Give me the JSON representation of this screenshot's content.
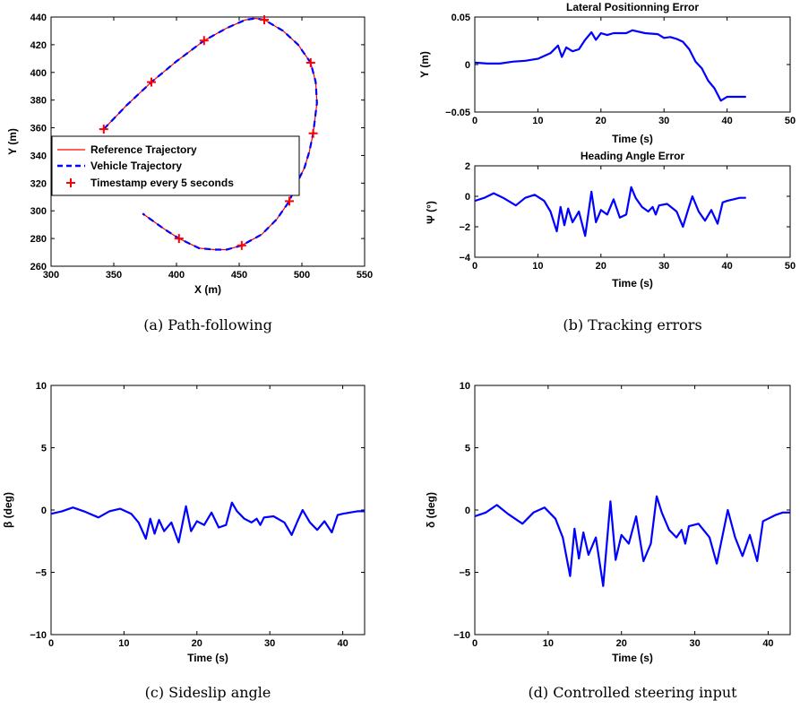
{
  "chart_data": [
    {
      "id": "a",
      "type": "line",
      "caption": "(a)  Path-following",
      "title": "",
      "xlabel": "X (m)",
      "ylabel": "Y (m)",
      "xlim": [
        300,
        550
      ],
      "ylim": [
        260,
        440
      ],
      "xticks": [
        300,
        350,
        400,
        450,
        500,
        550
      ],
      "yticks": [
        260,
        280,
        300,
        320,
        340,
        360,
        380,
        400,
        420,
        440
      ],
      "grid": false,
      "legend_position": "left-middle",
      "series": [
        {
          "name": "Reference Trajectory",
          "color": "#ff0000",
          "style": "solid",
          "x": [
            342,
            360,
            380,
            400,
            422,
            440,
            455,
            463,
            470,
            485,
            497,
            507,
            511,
            512,
            509,
            506,
            502,
            496,
            490,
            480,
            468,
            460,
            452,
            440,
            430,
            418,
            402,
            390,
            373
          ],
          "y": [
            359,
            376,
            393,
            408,
            423,
            432,
            438,
            439,
            438,
            430,
            420,
            407,
            393,
            378,
            356,
            343,
            331,
            320,
            307,
            294,
            283,
            279,
            275,
            272,
            272,
            273,
            280,
            287,
            298
          ]
        },
        {
          "name": "Vehicle Trajectory",
          "color": "#0000ff",
          "style": "dashed",
          "x": [
            342,
            360,
            380,
            400,
            422,
            440,
            455,
            463,
            470,
            485,
            497,
            507,
            511,
            512,
            509,
            506,
            502,
            496,
            490,
            480,
            468,
            460,
            452,
            440,
            430,
            418,
            402,
            390,
            373
          ],
          "y": [
            359,
            376,
            393,
            408,
            423,
            432,
            438,
            439,
            438,
            430,
            420,
            407,
            393,
            378,
            356,
            343,
            331,
            320,
            307,
            294,
            283,
            279,
            275,
            272,
            272,
            273,
            280,
            287,
            298
          ]
        },
        {
          "name": "Timestamp every 5 seconds",
          "color": "#ff0000",
          "marker": "+",
          "x": [
            342,
            380,
            422,
            470,
            507,
            509,
            490,
            452,
            402
          ],
          "y": [
            359,
            393,
            423,
            438,
            407,
            356,
            307,
            275,
            280
          ]
        }
      ]
    },
    {
      "id": "b1",
      "type": "line",
      "caption": "(b)  Tracking errors",
      "title": "Lateral Positionning Error",
      "xlabel": "Time (s)",
      "ylabel": "Y (m)",
      "xlim": [
        0,
        50
      ],
      "ylim": [
        -0.05,
        0.05
      ],
      "xticks": [
        0,
        10,
        20,
        30,
        40,
        50
      ],
      "yticks": [
        -0.05,
        0,
        0.05
      ],
      "ytick_labels": [
        "−0.05",
        "0",
        "0.05"
      ],
      "grid": false,
      "series": [
        {
          "color": "#0000ff",
          "x": [
            0,
            2,
            4,
            6,
            8,
            10,
            12,
            13.2,
            13.8,
            14.5,
            15.5,
            16.5,
            17.5,
            18.5,
            19.2,
            20,
            21,
            22,
            24,
            25,
            27,
            29,
            30,
            31,
            32,
            33,
            34,
            35,
            36,
            37,
            38,
            39,
            40,
            41,
            42,
            43
          ],
          "y": [
            0.002,
            0.001,
            0.001,
            0.003,
            0.004,
            0.006,
            0.012,
            0.02,
            0.008,
            0.018,
            0.014,
            0.016,
            0.026,
            0.034,
            0.026,
            0.033,
            0.031,
            0.033,
            0.033,
            0.036,
            0.033,
            0.032,
            0.028,
            0.029,
            0.027,
            0.024,
            0.016,
            0.003,
            -0.004,
            -0.017,
            -0.025,
            -0.038,
            -0.034,
            -0.034,
            -0.034,
            -0.034
          ]
        }
      ]
    },
    {
      "id": "b2",
      "type": "line",
      "title": "Heading Angle Error",
      "xlabel": "Time (s)",
      "ylabel": "Ψ (°)",
      "xlim": [
        0,
        50
      ],
      "ylim": [
        -4,
        2
      ],
      "xticks": [
        0,
        10,
        20,
        30,
        40,
        50
      ],
      "yticks": [
        -4,
        -2,
        0,
        2
      ],
      "ytick_labels": [
        "−4",
        "−2",
        "0",
        "2"
      ],
      "grid": false,
      "series": [
        {
          "color": "#0000ff",
          "x": [
            0,
            1.5,
            3,
            4.5,
            6.5,
            8,
            9.5,
            11,
            12,
            13,
            13.6,
            14.2,
            14.8,
            15.5,
            16.5,
            17.5,
            18.5,
            19.2,
            20,
            21,
            22,
            23,
            24,
            24.8,
            25.5,
            26.5,
            27.5,
            28.2,
            28.7,
            29.2,
            30.5,
            32,
            33,
            33.8,
            34.5,
            35.5,
            36.5,
            37.5,
            38.5,
            39.3,
            40,
            41,
            42,
            43
          ],
          "y": [
            -0.3,
            -0.1,
            0.2,
            -0.1,
            -0.6,
            -0.1,
            0.1,
            -0.3,
            -1.0,
            -2.3,
            -0.7,
            -1.9,
            -0.8,
            -1.7,
            -1.0,
            -2.6,
            0.3,
            -1.7,
            -0.9,
            -1.2,
            -0.2,
            -1.4,
            -1.2,
            0.6,
            -0.1,
            -0.7,
            -1.0,
            -0.7,
            -1.2,
            -0.6,
            -0.5,
            -1.0,
            -2.0,
            -0.9,
            0.0,
            -1.0,
            -1.6,
            -0.9,
            -1.8,
            -0.4,
            -0.3,
            -0.2,
            -0.1,
            -0.1
          ]
        }
      ]
    },
    {
      "id": "c",
      "type": "line",
      "caption": "(c)  Sideslip angle",
      "title": "",
      "xlabel": "Time (s)",
      "ylabel": "β (deg)",
      "xlim": [
        0,
        43
      ],
      "ylim": [
        -10,
        10
      ],
      "xticks": [
        0,
        10,
        20,
        30,
        40
      ],
      "yticks": [
        -10,
        -5,
        0,
        5,
        10
      ],
      "ytick_labels": [
        "−10",
        "−5",
        "0",
        "5",
        "10"
      ],
      "grid": false,
      "series": [
        {
          "color": "#0000ff",
          "x": [
            0,
            1.5,
            3,
            4.5,
            6.5,
            8,
            9.5,
            11,
            12,
            13,
            13.6,
            14.2,
            14.8,
            15.5,
            16.5,
            17.5,
            18.5,
            19.2,
            20,
            21,
            22,
            23,
            24,
            24.8,
            25.5,
            26.5,
            27.5,
            28.2,
            28.7,
            29.2,
            30.5,
            32,
            33,
            33.8,
            34.5,
            35.5,
            36.5,
            37.5,
            38.5,
            39.3,
            40,
            41,
            42,
            43
          ],
          "y": [
            -0.3,
            -0.1,
            0.2,
            -0.1,
            -0.6,
            -0.1,
            0.1,
            -0.3,
            -1.0,
            -2.3,
            -0.7,
            -1.9,
            -0.8,
            -1.7,
            -1.0,
            -2.6,
            0.3,
            -1.7,
            -0.9,
            -1.2,
            -0.2,
            -1.4,
            -1.2,
            0.6,
            -0.1,
            -0.7,
            -1.0,
            -0.7,
            -1.2,
            -0.6,
            -0.5,
            -1.0,
            -2.0,
            -0.9,
            0.0,
            -1.0,
            -1.6,
            -0.9,
            -1.8,
            -0.4,
            -0.3,
            -0.2,
            -0.1,
            -0.1
          ]
        }
      ]
    },
    {
      "id": "d",
      "type": "line",
      "caption": "(d)  Controlled steering input",
      "title": "",
      "xlabel": "Time (s)",
      "ylabel": "δ (deg)",
      "xlim": [
        0,
        43
      ],
      "ylim": [
        -10,
        10
      ],
      "xticks": [
        0,
        10,
        20,
        30,
        40
      ],
      "yticks": [
        -10,
        -5,
        0,
        5,
        10
      ],
      "ytick_labels": [
        "−10",
        "−5",
        "0",
        "5",
        "10"
      ],
      "grid": false,
      "series": [
        {
          "color": "#0000ff",
          "x": [
            0,
            1.5,
            3,
            4.5,
            6.5,
            8,
            9.5,
            11,
            12,
            13,
            13.6,
            14.2,
            14.8,
            15.5,
            16.5,
            17.5,
            18.5,
            19.2,
            20,
            21,
            22,
            23,
            24,
            24.8,
            25.5,
            26.5,
            27.5,
            28.2,
            28.7,
            29.2,
            30.5,
            32,
            33,
            33.8,
            34.5,
            35.5,
            36.5,
            37.5,
            38.5,
            39.3,
            40,
            41,
            42,
            43
          ],
          "y": [
            -0.5,
            -0.2,
            0.4,
            -0.3,
            -1.1,
            -0.2,
            0.2,
            -0.7,
            -2.2,
            -5.3,
            -1.5,
            -3.9,
            -1.8,
            -3.6,
            -2.2,
            -6.1,
            0.7,
            -4.0,
            -2.0,
            -2.7,
            -0.5,
            -4.1,
            -2.7,
            1.1,
            -0.2,
            -1.6,
            -2.2,
            -1.6,
            -2.7,
            -1.3,
            -1.1,
            -2.2,
            -4.3,
            -2.0,
            0.0,
            -2.2,
            -3.7,
            -2.0,
            -4.1,
            -0.9,
            -0.7,
            -0.4,
            -0.2,
            -0.2
          ]
        }
      ]
    }
  ]
}
